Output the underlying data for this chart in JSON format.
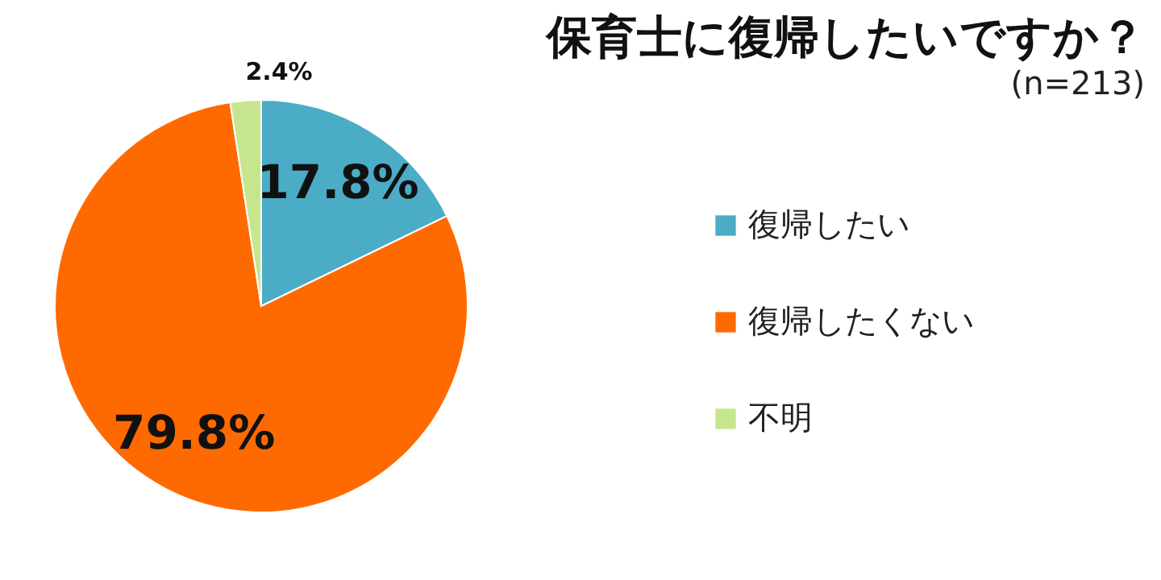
{
  "chart_data": {
    "type": "pie",
    "title": "保育士に復帰したいですか？",
    "subtitle": "(n=213)",
    "categories": [
      "復帰したい",
      "復帰したくない",
      "不明"
    ],
    "values": [
      17.8,
      79.8,
      2.4
    ],
    "colors": [
      "#4bacc6",
      "#ff6a00",
      "#c6e68e"
    ],
    "value_labels": [
      "17.8%",
      "79.8%",
      "2.4%"
    ],
    "legend": "right"
  }
}
